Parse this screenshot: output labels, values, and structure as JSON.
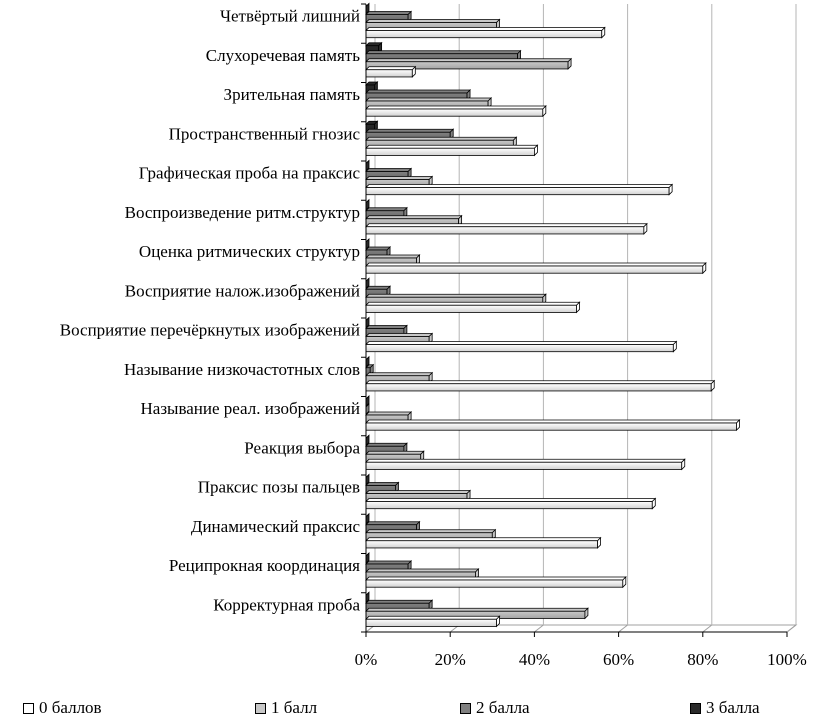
{
  "chart_data": {
    "type": "bar",
    "orientation": "horizontal",
    "stacked": false,
    "categories": [
      "Четвёртый лишний",
      "Слухоречевая память",
      "Зрительная память",
      "Пространственный гнозис",
      "Графическая проба на праксис",
      "Воспроизведение ритм.структур",
      "Оценка ритмических структур",
      "Восприятие налож.изображений",
      "Восприятие перечёркнутых изображений",
      "Называние низкочастотных слов",
      "Называние реал. изображений",
      "Реакция выбора",
      "Праксис позы пальцев",
      "Динамический праксис",
      "Реципрокная координация",
      "Корректурная проба"
    ],
    "series": [
      {
        "name": "0 баллов",
        "color": "#ffffff",
        "values": [
          56,
          11,
          42,
          40,
          72,
          66,
          80,
          50,
          73,
          82,
          88,
          75,
          68,
          55,
          61,
          31
        ]
      },
      {
        "name": "1 балл",
        "color": "#c8c8c8",
        "values": [
          31,
          48,
          29,
          35,
          15,
          22,
          12,
          42,
          15,
          15,
          10,
          13,
          24,
          30,
          26,
          52
        ]
      },
      {
        "name": "2 балла",
        "color": "#808080",
        "values": [
          10,
          36,
          24,
          20,
          10,
          9,
          5,
          5,
          9,
          1,
          0,
          9,
          7,
          12,
          10,
          15
        ]
      },
      {
        "name": "3 балла",
        "color": "#2a2a2a",
        "values": [
          0,
          3,
          2,
          2,
          0,
          0,
          0,
          0,
          0,
          0,
          0,
          0,
          0,
          0,
          0,
          0
        ]
      }
    ],
    "xlim": [
      0,
      100
    ],
    "xticks": [
      "0%",
      "20%",
      "40%",
      "60%",
      "80%",
      "100%"
    ],
    "title": "",
    "xlabel": "",
    "ylabel": "",
    "grid": true,
    "legend_position": "bottom"
  }
}
